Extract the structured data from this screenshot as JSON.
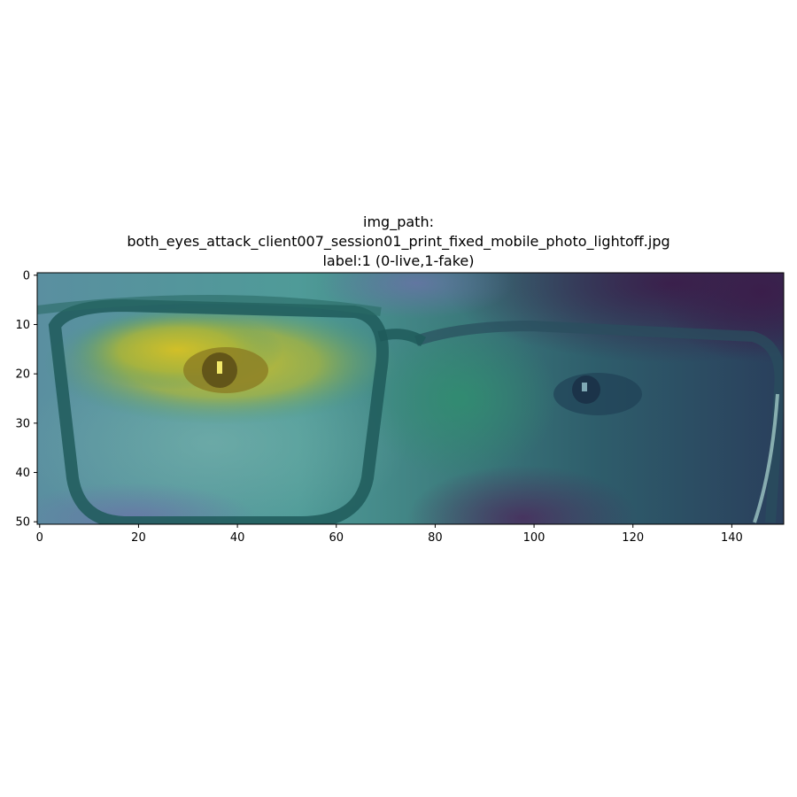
{
  "figure": {
    "title_line1": "img_path:",
    "title_line2": "both_eyes_attack_client007_session01_print_fixed_mobile_photo_lightoff.jpg",
    "title_line3": "label:1 (0-live,1-fake)"
  },
  "axes": {
    "x_ticks": [
      "0",
      "20",
      "40",
      "60",
      "80",
      "100",
      "120",
      "140"
    ],
    "x_tick_values": [
      0,
      20,
      40,
      60,
      80,
      100,
      120,
      140
    ],
    "y_ticks": [
      "0",
      "10",
      "20",
      "30",
      "40",
      "50"
    ],
    "y_tick_values": [
      0,
      10,
      20,
      30,
      40,
      50
    ],
    "xlim": [
      -0.5,
      150.5
    ],
    "ylim": [
      50.5,
      -0.5
    ]
  },
  "image": {
    "description_colormap": "viridis",
    "colors": {
      "hot_yellow": "#c9b82a",
      "teal": "#3d8f8c",
      "dark_purple": "#3a1f4d",
      "frame": "#1f5a5a"
    }
  }
}
